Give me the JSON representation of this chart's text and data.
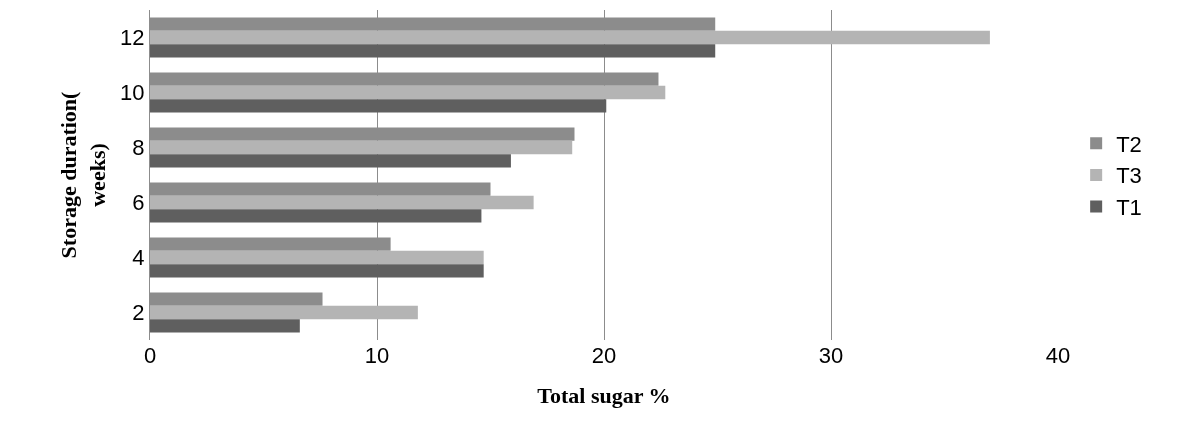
{
  "chart_data": {
    "type": "bar",
    "orientation": "horizontal",
    "xlabel": "Total sugar %",
    "ylabel": "Storage duration(\nweeks)",
    "categories": [
      "12",
      "10",
      "8",
      "6",
      "4",
      "2"
    ],
    "series": [
      {
        "name": "T2",
        "color": "#8c8c8c",
        "values": [
          24.9,
          22.4,
          18.7,
          15.0,
          10.6,
          7.6
        ]
      },
      {
        "name": "T3",
        "color": "#b4b4b4",
        "values": [
          37.0,
          22.7,
          18.6,
          16.9,
          14.7,
          11.8
        ]
      },
      {
        "name": "T1",
        "color": "#5f5f5f",
        "values": [
          24.9,
          20.1,
          15.9,
          14.6,
          14.7,
          6.6
        ]
      }
    ],
    "xlim": [
      0,
      40
    ],
    "xticks": [
      0,
      10,
      20,
      30,
      40
    ],
    "grid": "x",
    "legend": "right"
  }
}
